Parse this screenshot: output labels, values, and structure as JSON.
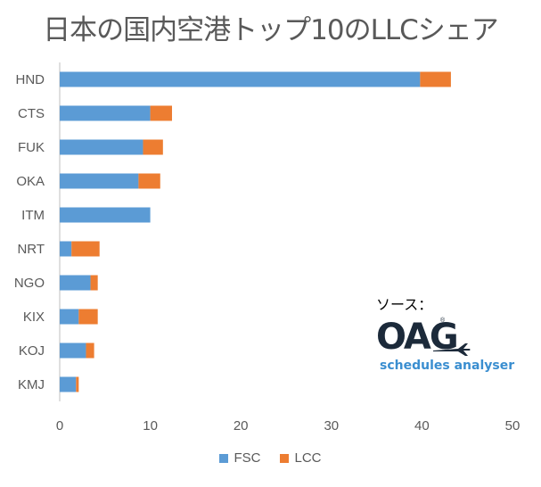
{
  "title": "日本の国内空港トップ10のLLCシェア",
  "colors": {
    "FSC": "#5b9bd5",
    "LCC": "#ed7d31"
  },
  "source": {
    "label": "ソース：",
    "logo_text": "OAG",
    "logo_subtext": "schedules analyser",
    "reg_mark": "®"
  },
  "chart_data": {
    "type": "bar",
    "orientation": "horizontal",
    "stacked": true,
    "title": "日本の国内空港トップ10のLLCシェア",
    "categories": [
      "HND",
      "CTS",
      "FUK",
      "OKA",
      "ITM",
      "NRT",
      "NGO",
      "KIX",
      "KOJ",
      "KMJ"
    ],
    "series": [
      {
        "name": "FSC",
        "values": [
          39.8,
          10.0,
          9.2,
          8.7,
          10.0,
          1.3,
          3.4,
          2.1,
          2.9,
          1.8
        ]
      },
      {
        "name": "LCC",
        "values": [
          3.4,
          2.4,
          2.2,
          2.4,
          0.0,
          3.1,
          0.8,
          2.1,
          0.9,
          0.3
        ]
      }
    ],
    "xlim": [
      0,
      50
    ],
    "xticks": [
      0,
      10,
      20,
      30,
      40,
      50
    ],
    "xlabel": "",
    "ylabel": "",
    "grid": false,
    "legend_position": "bottom"
  }
}
